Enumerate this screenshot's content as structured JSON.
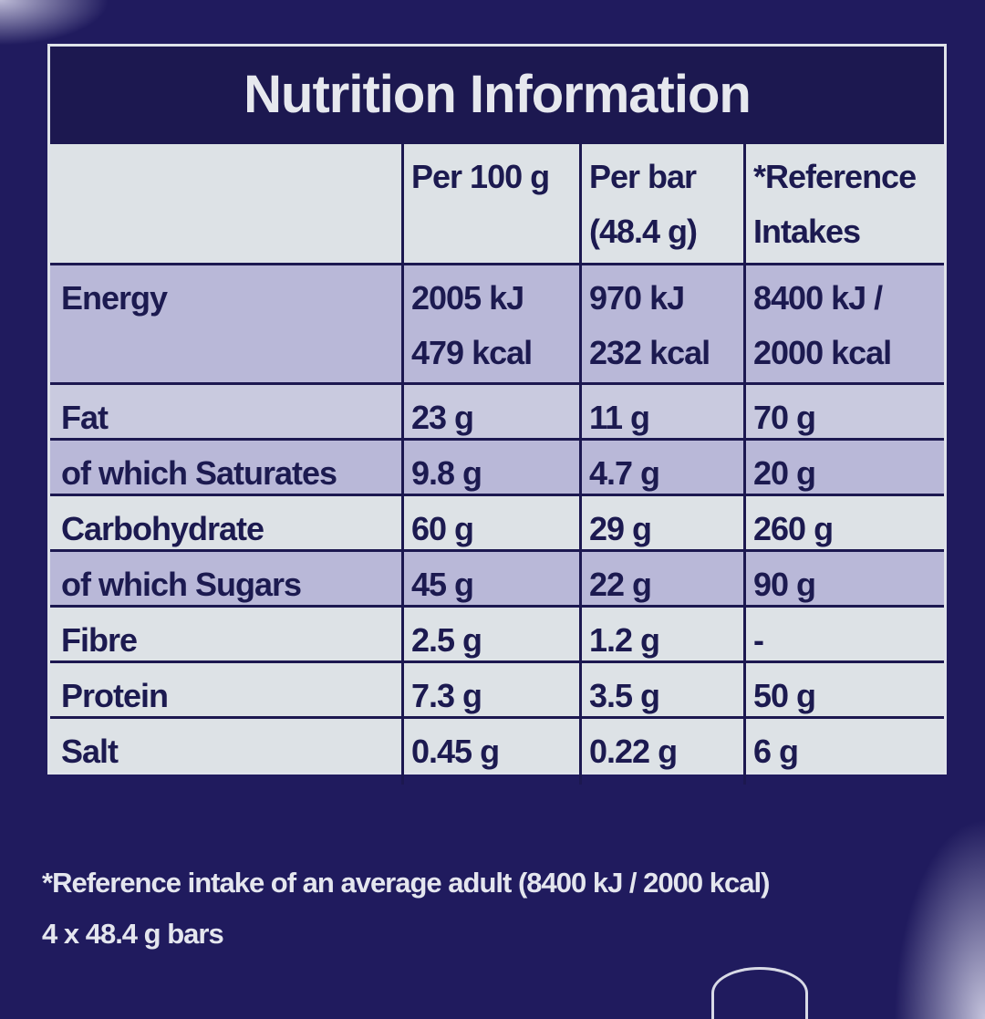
{
  "title": "Nutrition Information",
  "columns": [
    "",
    "Per 100 g",
    "Per bar\n(48.4 g)",
    "*Reference\nIntakes"
  ],
  "columns_lines": [
    [
      ""
    ],
    [
      "Per 100 g"
    ],
    [
      "Per bar",
      "(48.4 g)"
    ],
    [
      "*Reference",
      "Intakes"
    ]
  ],
  "energy": {
    "label": "Energy",
    "per100": [
      "2005 kJ",
      "479 kcal"
    ],
    "perbar": [
      "970 kJ",
      "232 kcal"
    ],
    "ri": [
      "8400 kJ /",
      "2000 kcal"
    ]
  },
  "rows": [
    {
      "label": "Fat",
      "per100": "23 g",
      "perbar": "11 g",
      "ri": "70 g"
    },
    {
      "label": "of which Saturates",
      "per100": "9.8 g",
      "perbar": "4.7 g",
      "ri": "20 g"
    },
    {
      "label": "Carbohydrate",
      "per100": "60 g",
      "perbar": "29 g",
      "ri": "260 g"
    },
    {
      "label": "of which Sugars",
      "per100": "45 g",
      "perbar": "22 g",
      "ri": "90 g"
    },
    {
      "label": "Fibre",
      "per100": "2.5 g",
      "perbar": "1.2 g",
      "ri": "-"
    },
    {
      "label": "Protein",
      "per100": "7.3 g",
      "perbar": "3.5 g",
      "ri": "50 g"
    },
    {
      "label": "Salt",
      "per100": "0.45 g",
      "perbar": "0.22 g",
      "ri": "6 g"
    }
  ],
  "footnote": "*Reference intake of an average adult (8400 kJ / 2000 kcal)",
  "pack_info": "4 x 48.4 g bars",
  "colors": {
    "background": "#201b5e",
    "text": "#1c1a50",
    "row_lavender": "#b9b8d8",
    "row_light": "#dde2e6"
  }
}
